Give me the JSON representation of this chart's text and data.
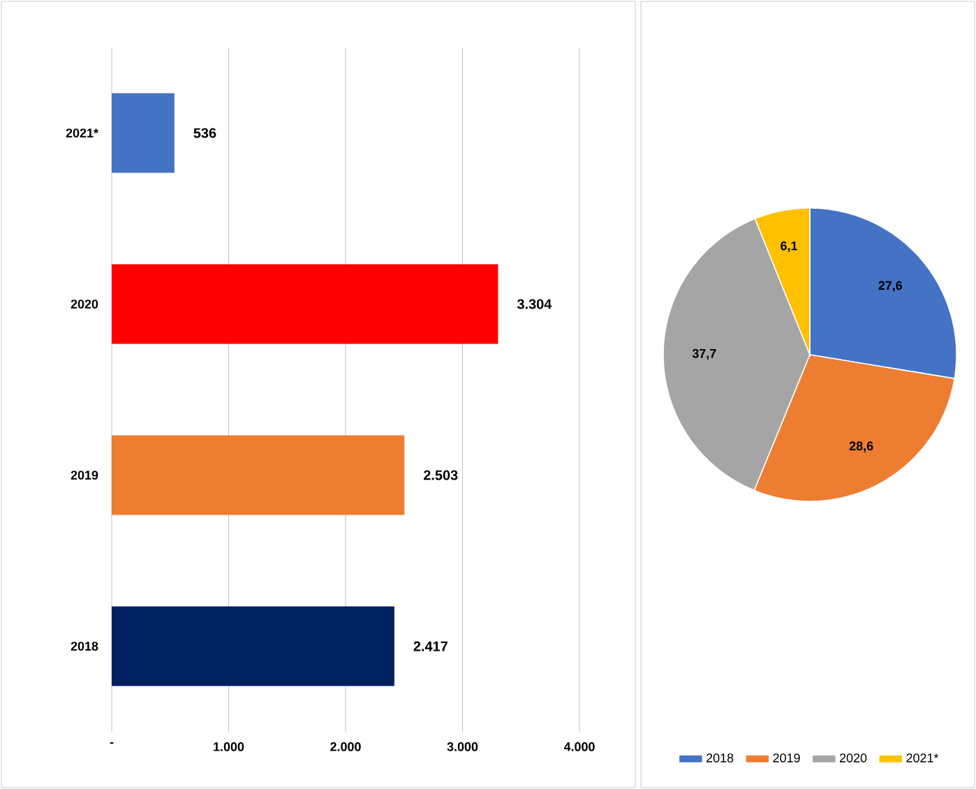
{
  "chart_data": [
    {
      "type": "bar",
      "orientation": "horizontal",
      "categories": [
        "2021*",
        "2020",
        "2019",
        "2018"
      ],
      "values": [
        536,
        3304,
        2503,
        2417
      ],
      "colors": [
        "#4472c4",
        "#ff0000",
        "#ed7d31",
        "#002060"
      ],
      "value_labels": [
        "536",
        "3.304",
        "2.503",
        "2.417"
      ],
      "xlim": [
        0,
        4000
      ],
      "xticks": [
        {
          "value": 0,
          "label": "-"
        },
        {
          "value": 1000,
          "label": "1.000"
        },
        {
          "value": 2000,
          "label": "2.000"
        },
        {
          "value": 3000,
          "label": "3.000"
        },
        {
          "value": 4000,
          "label": "4.000"
        }
      ],
      "grid": "x"
    },
    {
      "type": "pie",
      "categories": [
        "2018",
        "2019",
        "2020",
        "2021*"
      ],
      "values": [
        27.6,
        28.6,
        37.7,
        6.1
      ],
      "colors": [
        "#4472c4",
        "#ed7d31",
        "#a5a5a5",
        "#ffc000"
      ],
      "value_labels": [
        "27,6",
        "28,6",
        "37,7",
        "6,1"
      ],
      "legend": "bottom"
    }
  ]
}
